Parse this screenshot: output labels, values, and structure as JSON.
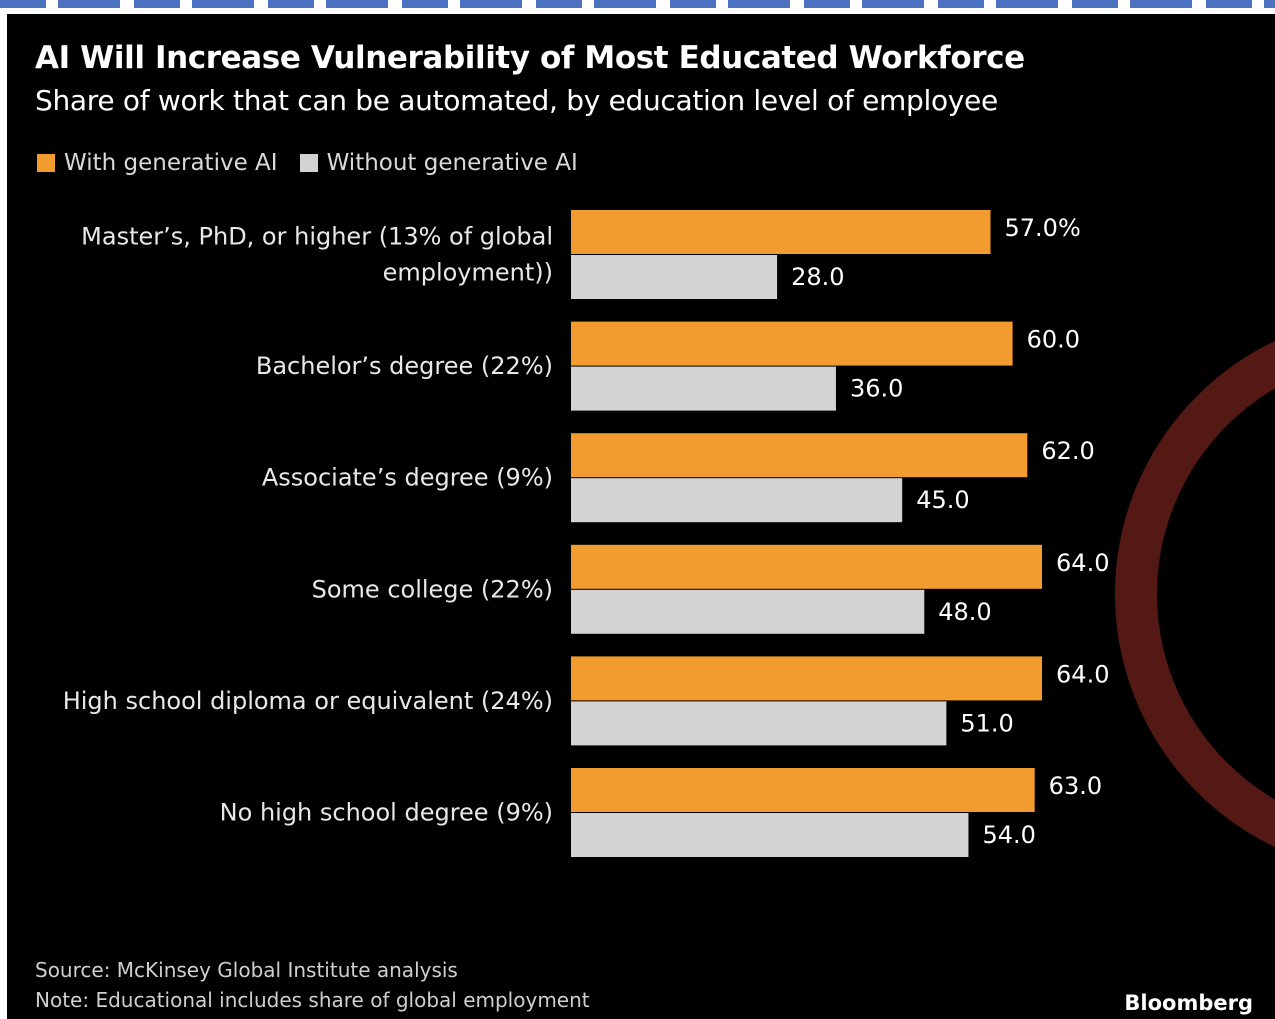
{
  "colors": {
    "background": "#000000",
    "with_ai": "#f29b2f",
    "without_ai": "#d3d3d3",
    "watermark_ring": "#5a1a16"
  },
  "chart_data": {
    "type": "bar",
    "orientation": "horizontal",
    "title": "AI Will Increase Vulnerability of Most Educated Workforce",
    "subtitle": "Share of work that can be automated, by education level of employee",
    "categories": [
      [
        "Master’s, PhD, or higher (13% of global",
        "employment))"
      ],
      [
        "Bachelor’s degree (22%)"
      ],
      [
        "Associate’s degree (9%)"
      ],
      [
        "Some college (22%)"
      ],
      [
        "High school diploma or equivalent (24%)"
      ],
      [
        "No high school degree (9%)"
      ]
    ],
    "series": [
      {
        "name": "With generative AI",
        "values": [
          57.0,
          60.0,
          62.0,
          64.0,
          64.0,
          63.0
        ],
        "labels": [
          "57.0%",
          "60.0",
          "62.0",
          "64.0",
          "64.0",
          "63.0"
        ]
      },
      {
        "name": "Without generative AI",
        "values": [
          28.0,
          36.0,
          45.0,
          48.0,
          51.0,
          54.0
        ],
        "labels": [
          "28.0",
          "36.0",
          "45.0",
          "48.0",
          "51.0",
          "54.0"
        ]
      }
    ],
    "xlim": [
      0,
      64
    ],
    "grid": false,
    "legend_position": "top-left"
  },
  "footer": {
    "source": "Source: McKinsey Global Institute analysis",
    "note": "Note: Educational includes share of global employment",
    "brand": "Bloomberg"
  }
}
